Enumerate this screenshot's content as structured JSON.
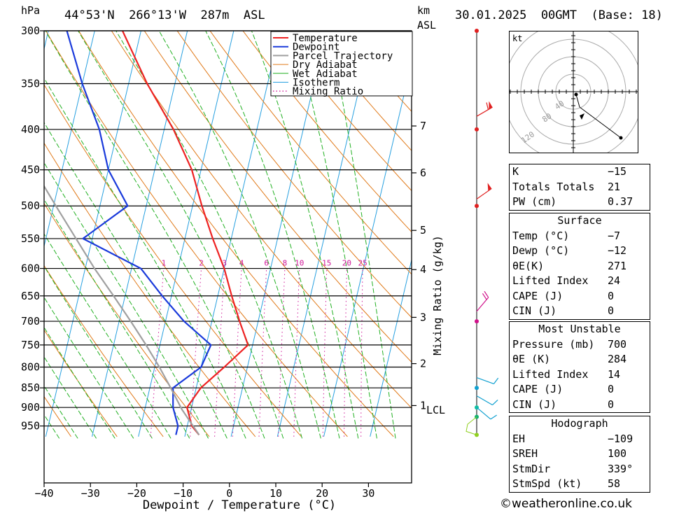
{
  "header": {
    "p_unit": "hPa",
    "location": "44°53'N  266°13'W  287m  ASL",
    "km_label": "km",
    "asl_label": "ASL",
    "datetime": "30.01.2025  00GMT  (Base: 18)"
  },
  "chart_data": {
    "type": "line",
    "title": "",
    "xlabel": "Dewpoint / Temperature (°C)",
    "ylabel": "hPa",
    "right_axis_label": "Mixing Ratio (g/kg)",
    "pressure_levels": [
      300,
      350,
      400,
      450,
      500,
      550,
      600,
      650,
      700,
      750,
      800,
      850,
      900,
      950
    ],
    "pressure_range": [
      300,
      980
    ],
    "x_ticks": [
      -40,
      -30,
      -20,
      -10,
      0,
      10,
      20,
      30
    ],
    "x_range": [
      -40,
      40
    ],
    "skew_deg_per_decade": 40,
    "km_ticks": [
      {
        "label": "7",
        "p": 396
      },
      {
        "label": "6",
        "p": 454
      },
      {
        "label": "5",
        "p": 537
      },
      {
        "label": "4",
        "p": 602
      },
      {
        "label": "3",
        "p": 692
      },
      {
        "label": "2",
        "p": 792
      },
      {
        "label": "1",
        "p": 895
      }
    ],
    "lcl_label": "LCL",
    "lcl_p": 905,
    "mixing_ratio_labels": [
      "1",
      "2",
      "3",
      "4",
      "6",
      "8",
      "10",
      "15",
      "20",
      "25"
    ],
    "mixing_ratio_values": [
      1,
      2,
      3,
      4,
      6,
      8,
      10,
      15,
      20,
      25
    ],
    "legend": [
      "Temperature",
      "Dewpoint",
      "Parcel Trajectory",
      "Dry Adiabat",
      "Wet Adiabat",
      "Isotherm",
      "Mixing Ratio"
    ],
    "legend_placement": "top-right",
    "colors": {
      "temperature": "#ee2222",
      "dewpoint": "#1a3adb",
      "parcel": "#a0a0a0",
      "dry_adiabat": "#e07a1a",
      "wet_adiabat": "#22b022",
      "isotherm": "#27a0e0",
      "mixing_ratio": "#d01a9a"
    },
    "series": [
      {
        "name": "Temperature",
        "points": [
          [
            975,
            -7
          ],
          [
            950,
            -9
          ],
          [
            900,
            -11
          ],
          [
            850,
            -9
          ],
          [
            800,
            -5
          ],
          [
            750,
            -1
          ],
          [
            700,
            -4
          ],
          [
            650,
            -7
          ],
          [
            600,
            -10
          ],
          [
            550,
            -14
          ],
          [
            500,
            -18
          ],
          [
            450,
            -22
          ],
          [
            400,
            -28
          ],
          [
            350,
            -36
          ],
          [
            300,
            -44
          ]
        ]
      },
      {
        "name": "Dewpoint",
        "points": [
          [
            975,
            -12
          ],
          [
            950,
            -12
          ],
          [
            900,
            -14
          ],
          [
            850,
            -15
          ],
          [
            800,
            -10
          ],
          [
            750,
            -9
          ],
          [
            700,
            -16
          ],
          [
            650,
            -22
          ],
          [
            600,
            -28
          ],
          [
            550,
            -42
          ],
          [
            500,
            -34
          ],
          [
            450,
            -40
          ],
          [
            400,
            -44
          ],
          [
            350,
            -50
          ],
          [
            300,
            -56
          ]
        ]
      },
      {
        "name": "Parcel Trajectory",
        "points": [
          [
            975,
            -7
          ],
          [
            905,
            -12
          ],
          [
            850,
            -15.5
          ],
          [
            800,
            -19
          ],
          [
            750,
            -23
          ],
          [
            700,
            -27.5
          ],
          [
            650,
            -32.5
          ],
          [
            600,
            -38
          ],
          [
            550,
            -43.5
          ],
          [
            500,
            -49.5
          ],
          [
            450,
            -56
          ],
          [
            400,
            -63
          ],
          [
            350,
            -70
          ],
          [
            300,
            -78
          ]
        ]
      }
    ],
    "wind_barbs": [
      {
        "p": 385,
        "dir": 300,
        "kt": 60
      },
      {
        "p": 490,
        "dir": 305,
        "kt": 50
      },
      {
        "p": 680,
        "dir": 320,
        "kt": 20
      },
      {
        "p": 825,
        "dir": 250,
        "kt": 10
      },
      {
        "p": 870,
        "dir": 240,
        "kt": 10
      },
      {
        "p": 900,
        "dir": 230,
        "kt": 10
      }
    ]
  },
  "hodograph": {
    "unit": "kt",
    "ring_labels": [
      "40",
      "80",
      "120"
    ]
  },
  "indices": [
    {
      "label": "K",
      "value": "−15"
    },
    {
      "label": "Totals Totals",
      "value": "21"
    },
    {
      "label": "PW (cm)",
      "value": "0.37"
    }
  ],
  "surface": {
    "title": "Surface",
    "rows": [
      {
        "label": "Temp (°C)",
        "value": "−7"
      },
      {
        "label": "Dewp (°C)",
        "value": "−12"
      },
      {
        "label": "θE(K)",
        "value": "271"
      },
      {
        "label": "Lifted Index",
        "value": "24"
      },
      {
        "label": "CAPE (J)",
        "value": "0"
      },
      {
        "label": "CIN (J)",
        "value": "0"
      }
    ]
  },
  "most_unstable": {
    "title": "Most Unstable",
    "rows": [
      {
        "label": "Pressure (mb)",
        "value": "700"
      },
      {
        "label": "θE (K)",
        "value": "284"
      },
      {
        "label": "Lifted Index",
        "value": "14"
      },
      {
        "label": "CAPE (J)",
        "value": "0"
      },
      {
        "label": "CIN (J)",
        "value": "0"
      }
    ]
  },
  "hodograph_table": {
    "title": "Hodograph",
    "rows": [
      {
        "label": "EH",
        "value": "−109"
      },
      {
        "label": "SREH",
        "value": "100"
      },
      {
        "label": "StmDir",
        "value": "339°"
      },
      {
        "label": "StmSpd (kt)",
        "value": "58"
      }
    ]
  },
  "credit": "©weatheronline.co.uk"
}
